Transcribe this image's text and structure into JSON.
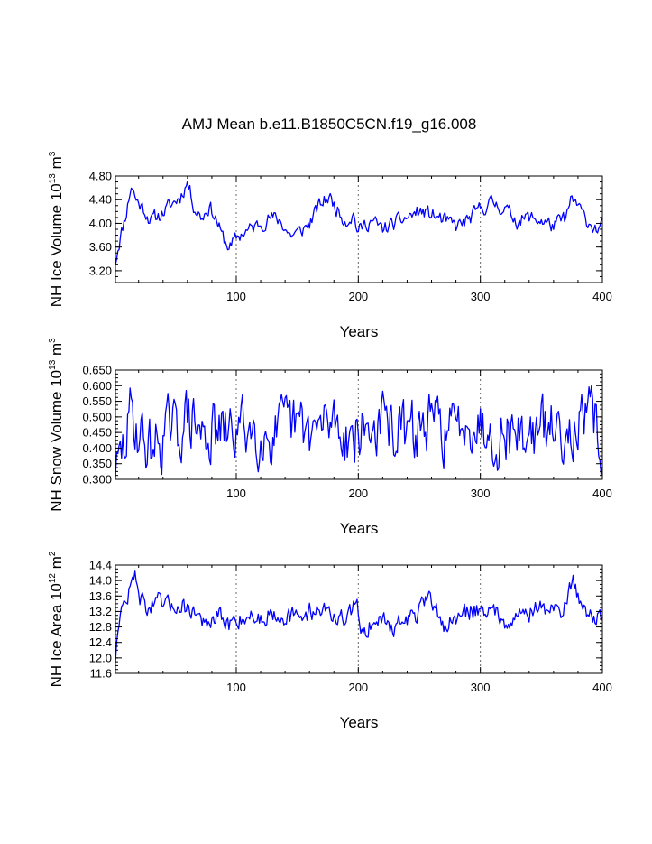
{
  "title": "AMJ Mean b.e11.B1850C5CN.f19_g16.008",
  "line_color": "#0000ff",
  "chart_data": [
    {
      "type": "line",
      "ylabel_text": "NH Ice Volume 10",
      "ylabel_exp": "13",
      "ylabel_unit": " m",
      "ylabel_unit_exp": "3",
      "xlabel": "Years",
      "xlim": [
        1,
        400
      ],
      "ylim": [
        3.0,
        4.8
      ],
      "yticks": [
        3.2,
        3.6,
        4.0,
        4.4,
        4.8
      ],
      "ytick_labels": [
        "3.20",
        "3.60",
        "4.00",
        "4.40",
        "4.80"
      ],
      "xticks": [
        100,
        200,
        300,
        400
      ],
      "xtick_labels": [
        "100",
        "200",
        "300",
        "400"
      ],
      "vlines": [
        100,
        200,
        300
      ],
      "seed": 11,
      "noise": 0.11,
      "key_x": [
        1,
        3,
        6,
        10,
        14,
        18,
        24,
        30,
        38,
        46,
        54,
        60,
        66,
        72,
        78,
        84,
        88,
        92,
        96,
        100,
        106,
        112,
        120,
        128,
        136,
        144,
        152,
        160,
        168,
        176,
        184,
        190,
        196,
        200,
        204,
        210,
        220,
        230,
        240,
        250,
        260,
        270,
        280,
        290,
        300,
        310,
        320,
        330,
        340,
        350,
        360,
        370,
        375,
        380,
        385,
        390,
        395,
        400
      ],
      "key_y": [
        3.35,
        3.6,
        3.85,
        4.2,
        4.65,
        4.4,
        4.25,
        4.05,
        4.15,
        4.3,
        4.45,
        4.7,
        4.25,
        4.1,
        4.3,
        4.05,
        3.8,
        3.65,
        3.6,
        3.75,
        3.85,
        3.9,
        4.0,
        4.1,
        4.05,
        3.8,
        3.85,
        4.0,
        4.3,
        4.45,
        4.2,
        4.05,
        4.15,
        3.85,
        3.95,
        4.05,
        3.9,
        4.0,
        4.1,
        4.2,
        4.15,
        4.05,
        3.95,
        4.05,
        4.25,
        4.35,
        4.25,
        4.05,
        4.1,
        4.05,
        3.95,
        4.1,
        4.4,
        4.3,
        4.1,
        4.0,
        3.9,
        3.95
      ]
    },
    {
      "type": "line",
      "ylabel_text": "NH Snow Volume 10",
      "ylabel_exp": "13",
      "ylabel_unit": " m",
      "ylabel_unit_exp": "3",
      "xlabel": "Years",
      "xlim": [
        1,
        400
      ],
      "ylim": [
        0.3,
        0.65
      ],
      "yticks": [
        0.3,
        0.35,
        0.4,
        0.45,
        0.5,
        0.55,
        0.6,
        0.65
      ],
      "ytick_labels": [
        "0.300",
        "0.350",
        "0.400",
        "0.450",
        "0.500",
        "0.550",
        "0.600",
        "0.650"
      ],
      "xticks": [
        100,
        200,
        300,
        400
      ],
      "xtick_labels": [
        "100",
        "200",
        "300",
        "400"
      ],
      "vlines": [
        100,
        200,
        300
      ],
      "seed": 29,
      "noise": 0.085,
      "key_x": [
        1,
        3,
        8,
        14,
        20,
        28,
        36,
        44,
        52,
        58,
        64,
        72,
        80,
        90,
        100,
        110,
        120,
        130,
        140,
        150,
        160,
        170,
        180,
        190,
        200,
        210,
        220,
        230,
        240,
        250,
        260,
        270,
        280,
        288,
        296,
        305,
        315,
        325,
        335,
        345,
        355,
        365,
        375,
        385,
        392,
        396,
        400
      ],
      "key_y": [
        0.34,
        0.33,
        0.4,
        0.52,
        0.45,
        0.4,
        0.42,
        0.46,
        0.44,
        0.5,
        0.48,
        0.44,
        0.45,
        0.44,
        0.46,
        0.47,
        0.45,
        0.44,
        0.46,
        0.47,
        0.45,
        0.46,
        0.5,
        0.44,
        0.45,
        0.46,
        0.48,
        0.46,
        0.44,
        0.46,
        0.48,
        0.46,
        0.45,
        0.52,
        0.48,
        0.47,
        0.44,
        0.46,
        0.44,
        0.45,
        0.46,
        0.46,
        0.48,
        0.47,
        0.5,
        0.46,
        0.4
      ]
    },
    {
      "type": "line",
      "ylabel_text": "NH Ice Area 10",
      "ylabel_exp": "12",
      "ylabel_unit": " m",
      "ylabel_unit_exp": "2",
      "xlabel": "Years",
      "xlim": [
        1,
        400
      ],
      "ylim": [
        11.6,
        14.4
      ],
      "yticks": [
        11.6,
        12.0,
        12.4,
        12.8,
        13.2,
        13.6,
        14.0,
        14.4
      ],
      "ytick_labels": [
        "11.6",
        "12.0",
        "12.4",
        "12.8",
        "13.2",
        "13.6",
        "14.0",
        "14.4"
      ],
      "xticks": [
        100,
        200,
        300,
        400
      ],
      "xtick_labels": [
        "100",
        "200",
        "300",
        "400"
      ],
      "vlines": [
        100,
        200,
        300
      ],
      "seed": 47,
      "noise": 0.22,
      "key_x": [
        1,
        3,
        6,
        10,
        14,
        18,
        22,
        28,
        36,
        44,
        52,
        60,
        66,
        72,
        76,
        80,
        86,
        92,
        100,
        110,
        120,
        130,
        140,
        150,
        160,
        170,
        180,
        190,
        196,
        200,
        204,
        210,
        220,
        230,
        240,
        250,
        256,
        260,
        266,
        272,
        280,
        290,
        300,
        310,
        320,
        330,
        340,
        350,
        360,
        368,
        372,
        376,
        380,
        386,
        392,
        398,
        400
      ],
      "key_y": [
        12.0,
        12.9,
        13.2,
        13.5,
        13.9,
        14.1,
        13.5,
        13.3,
        13.4,
        13.3,
        13.4,
        13.3,
        13.2,
        13.0,
        12.7,
        12.9,
        13.1,
        12.8,
        13.0,
        13.1,
        13.0,
        13.2,
        13.1,
        13.0,
        13.2,
        13.3,
        13.1,
        12.9,
        13.3,
        13.2,
        12.6,
        12.9,
        13.0,
        12.8,
        13.0,
        13.2,
        13.4,
        13.5,
        13.1,
        12.8,
        13.0,
        13.2,
        13.3,
        13.2,
        13.0,
        13.1,
        13.2,
        13.3,
        13.2,
        13.3,
        13.6,
        14.0,
        13.6,
        13.3,
        13.1,
        13.0,
        12.9
      ]
    }
  ]
}
